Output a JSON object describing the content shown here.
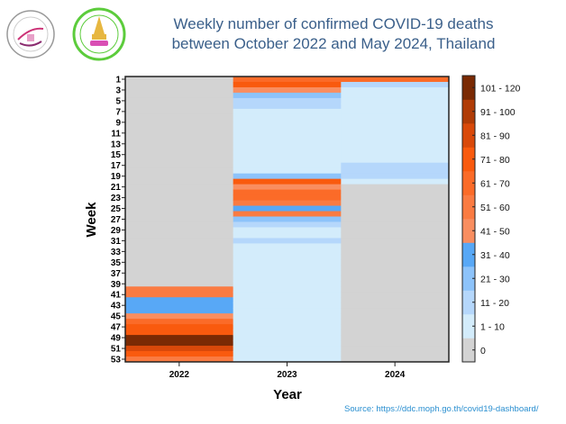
{
  "logos": [
    {
      "name": "faculty-logo-left",
      "colors": [
        "#8a2a6e",
        "#cc3377"
      ]
    },
    {
      "name": "chulalongkorn-medicine-logo",
      "colors": [
        "#5ccc3c",
        "#e7b740",
        "#d94fb4"
      ]
    }
  ],
  "source": "Source:  https://ddc.moph.go.th/covid19-dashboard/",
  "chart_data": {
    "type": "heatmap",
    "title_line1": "Weekly number of confirmed COVID-19 deaths",
    "title_line2": "between October 2022 and May 2024, Thailand",
    "xlabel": "Year",
    "ylabel": "Week",
    "x_categories": [
      "2022",
      "2023",
      "2024"
    ],
    "y_tick_labels": [
      "1",
      "3",
      "5",
      "7",
      "9",
      "11",
      "13",
      "15",
      "17",
      "19",
      "21",
      "23",
      "25",
      "27",
      "29",
      "31",
      "33",
      "35",
      "37",
      "39",
      "41",
      "43",
      "45",
      "47",
      "49",
      "51",
      "53"
    ],
    "weeks": 53,
    "bins": [
      {
        "label": "0",
        "color": "#d3d3d3"
      },
      {
        "label": "1 - 10",
        "color": "#d3ecfb"
      },
      {
        "label": "11 - 20",
        "color": "#b5d7fb"
      },
      {
        "label": "21 - 30",
        "color": "#8dc3fa"
      },
      {
        "label": "31 - 40",
        "color": "#58a8f6"
      },
      {
        "label": "41 - 50",
        "color": "#f98e60"
      },
      {
        "label": "51 - 60",
        "color": "#fa7b42"
      },
      {
        "label": "61 - 70",
        "color": "#fb6b28"
      },
      {
        "label": "71 - 80",
        "color": "#f95a0e"
      },
      {
        "label": "81 - 90",
        "color": "#d9490a"
      },
      {
        "label": "91 - 100",
        "color": "#b03c07"
      },
      {
        "label": "101 - 120",
        "color": "#7a2a04"
      }
    ],
    "legend_placement": "right",
    "values_bin_index": {
      "2022": [
        0,
        0,
        0,
        0,
        0,
        0,
        0,
        0,
        0,
        0,
        0,
        0,
        0,
        0,
        0,
        0,
        0,
        0,
        0,
        0,
        0,
        0,
        0,
        0,
        0,
        0,
        0,
        0,
        0,
        0,
        0,
        0,
        0,
        0,
        0,
        0,
        0,
        0,
        0,
        6,
        6,
        4,
        4,
        4,
        5,
        7,
        8,
        8,
        11,
        11,
        9,
        8,
        6
      ],
      "2023": [
        7,
        8,
        5,
        3,
        2,
        2,
        1,
        1,
        1,
        1,
        1,
        1,
        1,
        1,
        1,
        1,
        1,
        1,
        3,
        8,
        5,
        7,
        7,
        6,
        4,
        6,
        3,
        2,
        1,
        1,
        2,
        1,
        1,
        1,
        1,
        1,
        1,
        1,
        1,
        1,
        1,
        1,
        1,
        1,
        1,
        1,
        1,
        1,
        1,
        1,
        1,
        1,
        1
      ],
      "2024": [
        7,
        2,
        1,
        1,
        1,
        1,
        1,
        1,
        1,
        1,
        1,
        1,
        1,
        1,
        1,
        1,
        2,
        2,
        2,
        1,
        0,
        0,
        0,
        0,
        0,
        0,
        0,
        0,
        0,
        0,
        0,
        0,
        0,
        0,
        0,
        0,
        0,
        0,
        0,
        0,
        0,
        0,
        0,
        0,
        0,
        0,
        0,
        0,
        0,
        0,
        0,
        0,
        0
      ]
    }
  }
}
